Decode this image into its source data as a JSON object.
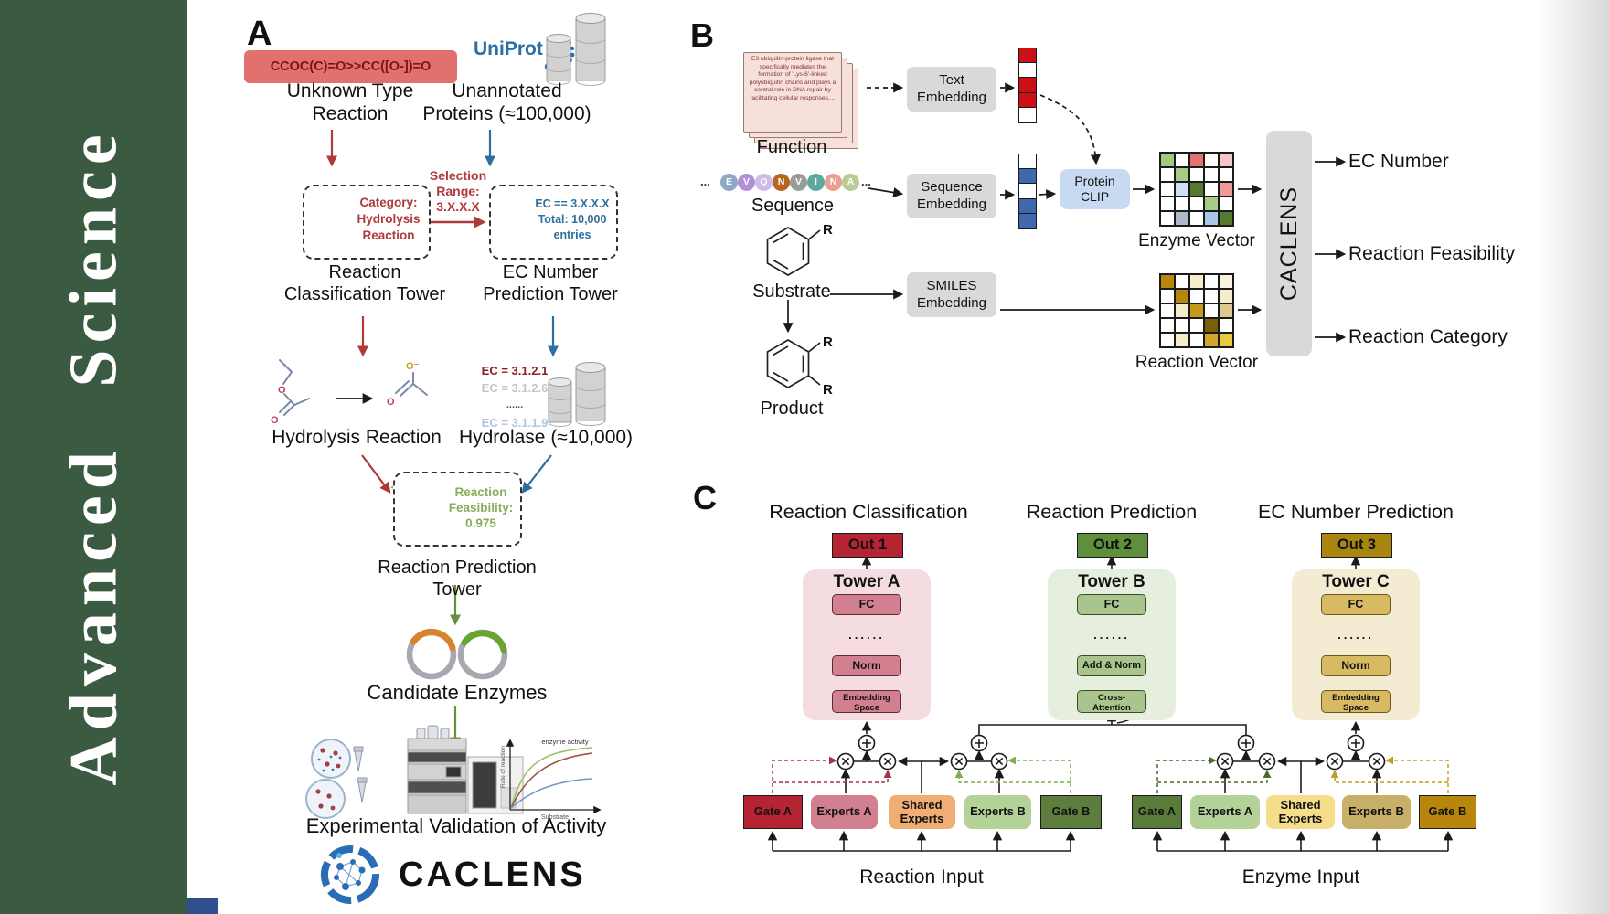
{
  "journal": {
    "name": "Advanced Science"
  },
  "colors": {
    "sidebar_green": "#3b5a42",
    "red_accent": "#b03a3a",
    "blue_accent": "#2d6f9e",
    "green_accent": "#6a8f3f",
    "smiles_box": "#e0716e",
    "uniprot_blue": "#2a6da8",
    "out1": "#b52433",
    "out2": "#5d8f3c",
    "out3": "#a8860f",
    "towerA_bg": "#f4dce0",
    "towerB_bg": "#e6eedd",
    "towerC_bg": "#f3ecd3"
  },
  "panelA": {
    "label": "A",
    "smiles": "CCOC(C)=O>>CC([O-])=O",
    "unknown": [
      "Unknown Type",
      "Reaction"
    ],
    "uniprot": "UniProt",
    "unannotated": [
      "Unannotated",
      "Proteins (≈100,000)"
    ],
    "selection": [
      "Selection",
      "Range:",
      "3.X.X.X"
    ],
    "category": [
      "Category:",
      "Hydrolysis",
      "Reaction"
    ],
    "ecbox": [
      "EC == 3.X.X.X",
      "Total: 10,000",
      "entries"
    ],
    "tower1": [
      "Reaction",
      "Classification Tower"
    ],
    "tower2": [
      "EC Number",
      "Prediction Tower"
    ],
    "eclist": [
      "EC = 3.1.2.1",
      "EC = 3.1.2.6",
      "......",
      "EC = 3.1.1.9"
    ],
    "hydrolysis": "Hydrolysis Reaction",
    "hydrolase": "Hydrolase (≈10,000)",
    "enzyme": "Enzyme",
    "feasibility": [
      "Reaction",
      "Feasibility:",
      "0.975"
    ],
    "tower3": "Reaction Prediction Tower",
    "candidates": "Candidate Enzymes",
    "validation": "Experimental Validation of Activity",
    "graph": {
      "ylabel": "Rate of reaction",
      "xlabel": "Substrate",
      "annotation": "enzyme activity"
    },
    "logo": "CACLENS"
  },
  "panelB": {
    "label": "B",
    "function_text": "E3 ubiquitin-protein ligase that specifically mediates the formation of 'Lys-6'-linked polyubiquitin chains and plays a central role in DNA repair by facilitating cellular responses....",
    "function_label": "Function",
    "ellipsis": "...",
    "sequence_letters": [
      "E",
      "V",
      "Q",
      "N",
      "V",
      "I",
      "N",
      "A"
    ],
    "seq_colors": [
      "#8fa8c8",
      "#b48fd9",
      "#cdbbe8",
      "#b5651d",
      "#9a9a9a",
      "#5fa8a0",
      "#e8a090",
      "#b8cc96"
    ],
    "sequence_label": "Sequence",
    "substrate_label": "Substrate",
    "product_label": "Product",
    "r": "R",
    "text_embedding": [
      "Text",
      "Embedding"
    ],
    "sequence_embedding": [
      "Sequence",
      "Embedding"
    ],
    "smiles_embedding": [
      "SMILES",
      "Embedding"
    ],
    "protein_clip": [
      "Protein",
      "CLIP"
    ],
    "text_vector": [
      "#cc1016",
      "#ffffff",
      "#cc1016",
      "#cc1016",
      "#ffffff"
    ],
    "seq_vector": [
      "#ffffff",
      "#3f68ae",
      "#ffffff",
      "#3f68ae",
      "#3f68ae"
    ],
    "enzyme_grid": [
      [
        "#9ec97e",
        "#ffffff",
        "#e57373",
        "#ffffff",
        "#f4c7cf"
      ],
      [
        "#ffffff",
        "#a6cd87",
        "#ffffff",
        "#ffffff",
        "#ffffff"
      ],
      [
        "#ffffff",
        "#cfe0f2",
        "#55792f",
        "#ffffff",
        "#ef9a9a"
      ],
      [
        "#ffffff",
        "#ffffff",
        "#ffffff",
        "#a6cd87",
        "#ffffff"
      ],
      [
        "#ffffff",
        "#adb9c9",
        "#ffffff",
        "#a9c7e8",
        "#55792f"
      ]
    ],
    "reaction_grid": [
      [
        "#b8860b",
        "#ffffff",
        "#f6eecb",
        "#ffffff",
        "#faf3dd"
      ],
      [
        "#ffffff",
        "#b8860b",
        "#ffffff",
        "#ffffff",
        "#f6eecb"
      ],
      [
        "#ffffff",
        "#f6eecb",
        "#c49a1a",
        "#ffffff",
        "#dfc98f"
      ],
      [
        "#ffffff",
        "#ffffff",
        "#ffffff",
        "#7c5f04",
        "#ffffff"
      ],
      [
        "#ffffff",
        "#f6eecb",
        "#ffffff",
        "#d1a62d",
        "#e9c842"
      ]
    ],
    "enzyme_vector_label": "Enzyme Vector",
    "reaction_vector_label": "Reaction Vector",
    "caclens": "CACLENS",
    "outputs": [
      "EC Number",
      "Reaction Feasibility",
      "Reaction Category"
    ]
  },
  "panelC": {
    "label": "C",
    "headers": [
      "Reaction Classification",
      "Reaction Prediction",
      "EC Number Prediction"
    ],
    "outs": [
      "Out 1",
      "Out 2",
      "Out 3"
    ],
    "towerA": {
      "title": "Tower A",
      "fc": "FC",
      "dots": "......",
      "norm": "Norm",
      "bottom": [
        "Embedding",
        "Space"
      ]
    },
    "towerB": {
      "title": "Tower B",
      "fc": "FC",
      "dots": "......",
      "norm": "Add & Norm",
      "bottom": [
        "Cross-",
        "Attention"
      ]
    },
    "towerC": {
      "title": "Tower C",
      "fc": "FC",
      "dots": "......",
      "norm": "Norm",
      "bottom": [
        "Embedding",
        "Space"
      ]
    },
    "groups": [
      {
        "gateA": "Gate A",
        "expertsA": "Experts A",
        "shared": [
          "Shared",
          "Experts"
        ],
        "expertsB": "Experts B",
        "gateB": "Gate B",
        "input": "Reaction Input"
      },
      {
        "gateA": "Gate A",
        "expertsA": "Experts A",
        "shared": [
          "Shared",
          "Experts"
        ],
        "expertsB": "Experts B",
        "gateB": "Gate B",
        "input": "Enzyme Input"
      }
    ]
  }
}
